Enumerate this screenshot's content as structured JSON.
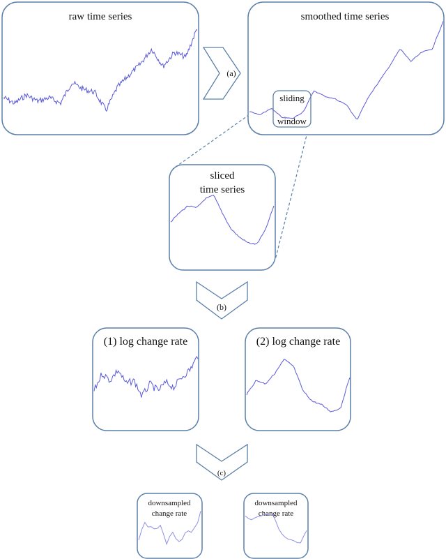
{
  "panels": {
    "raw": "raw time series",
    "smoothed": "smoothed time series",
    "sliding_top": "sliding",
    "sliding_bottom": "window",
    "sliced_line1": "sliced",
    "sliced_line2": "time series",
    "log1": "(1) log change rate",
    "log2": "(2) log change rate",
    "down1_line1": "downsampled",
    "down1_line2": "change rate",
    "down2_line1": "downsampled",
    "down2_line2": "change rate"
  },
  "steps": {
    "a": "(a)",
    "b": "(b)",
    "c": "(c)"
  },
  "colors": {
    "border": "#5a7fa8",
    "series": "#5a5ad8"
  }
}
